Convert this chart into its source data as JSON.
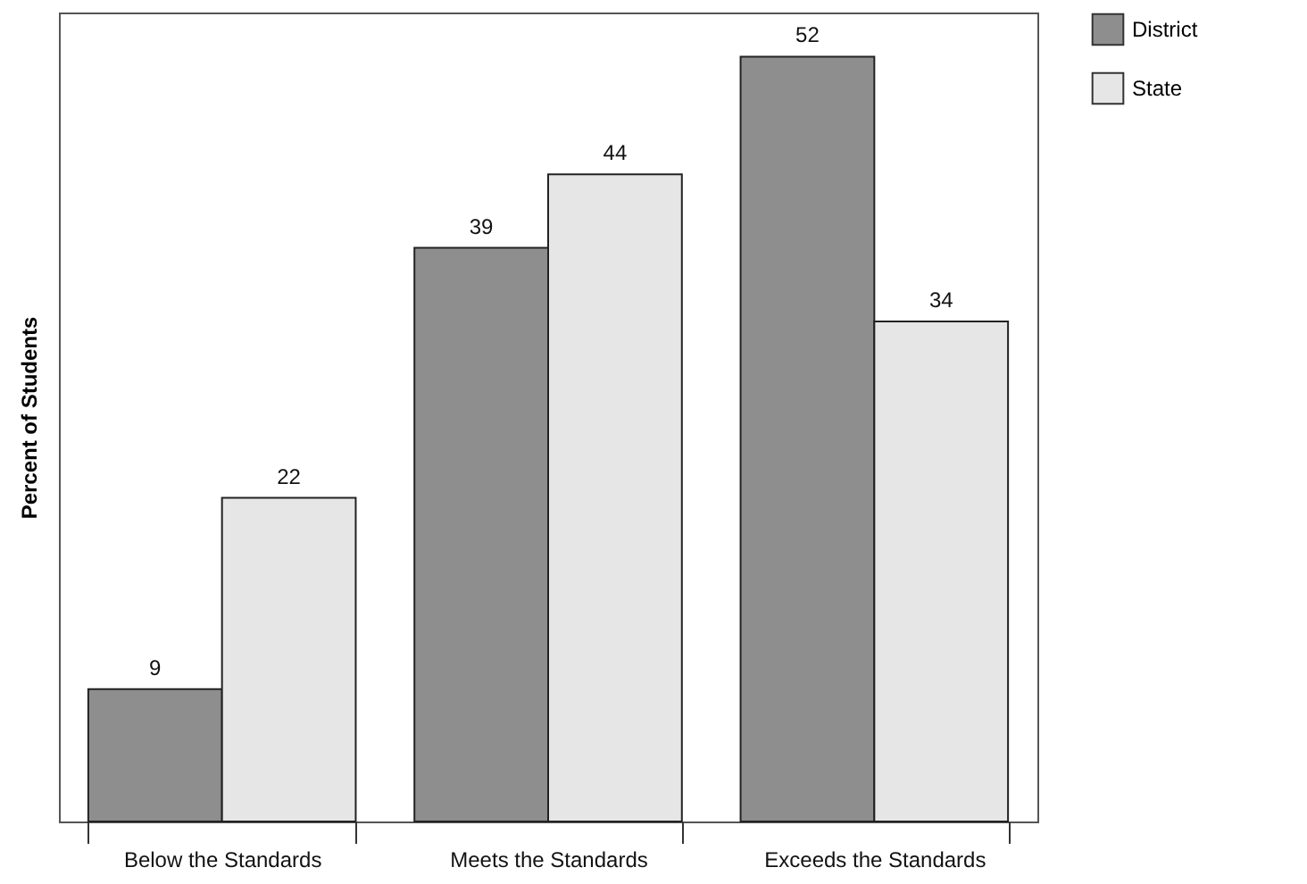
{
  "chart_data": {
    "type": "bar",
    "ylabel": "Percent of Students",
    "categories": [
      "Below the Standards",
      "Meets the Standards",
      "Exceeds the Standards"
    ],
    "series": [
      {
        "name": "District",
        "color": "#8e8e8e",
        "values": [
          9,
          39,
          52
        ]
      },
      {
        "name": "State",
        "color": "#e6e6e6",
        "values": [
          22,
          44,
          34
        ]
      }
    ],
    "data_labels": true,
    "legend": "right"
  }
}
